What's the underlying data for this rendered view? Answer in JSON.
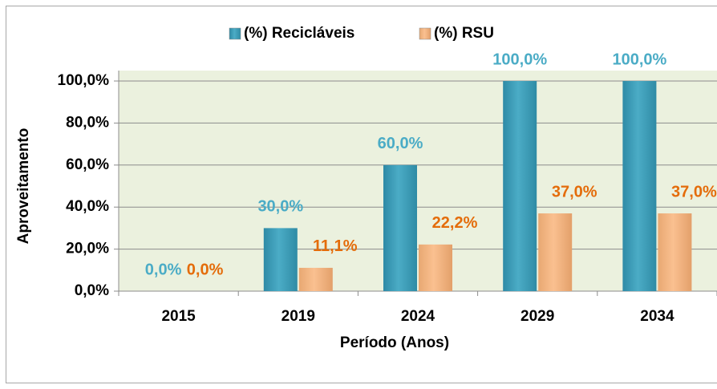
{
  "chart_data": {
    "type": "bar",
    "x_label": "Período (Anos)",
    "y_label": "Aproveitamento",
    "categories": [
      "2015",
      "2019",
      "2024",
      "2029",
      "2034"
    ],
    "series": [
      {
        "name": "(%) Recicláveis",
        "color": "#4bacc6",
        "label_color": "#4bacc6",
        "values": [
          0,
          30,
          60,
          100,
          100
        ],
        "value_labels": [
          "0,0%",
          "30,0%",
          "60,0%",
          "100,0%",
          "100,0%"
        ]
      },
      {
        "name": "(%) RSU",
        "color": "#fac090",
        "label_color": "#e46c0a",
        "values": [
          0,
          11.1,
          22.2,
          37,
          37
        ],
        "value_labels": [
          "0,0%",
          "11,1%",
          "22,2%",
          "37,0%",
          "37,0%"
        ]
      }
    ],
    "ylim": [
      0,
      100
    ],
    "yticks": [
      {
        "value": 0,
        "label": "0,0%"
      },
      {
        "value": 20,
        "label": "20,0%"
      },
      {
        "value": 40,
        "label": "40,0%"
      },
      {
        "value": 60,
        "label": "60,0%"
      },
      {
        "value": 80,
        "label": "80,0%"
      },
      {
        "value": 100,
        "label": "100,0%"
      }
    ],
    "grid": true,
    "legend": "top"
  }
}
